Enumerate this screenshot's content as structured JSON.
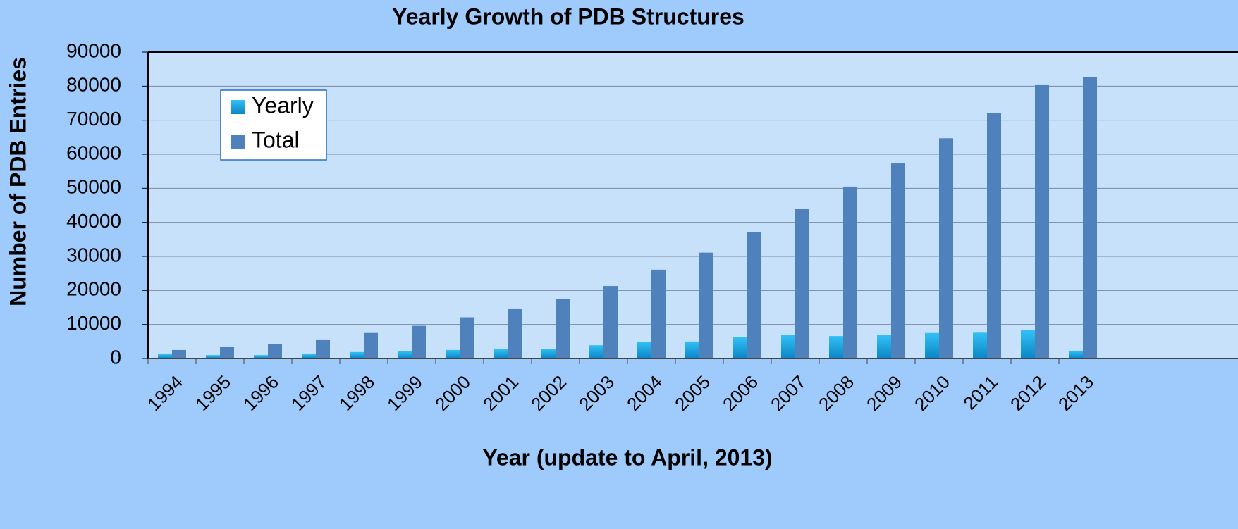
{
  "chart_data": {
    "type": "bar",
    "title": "Yearly Growth of PDB Structures",
    "xlabel": "Year (update to April, 2013)",
    "ylabel": "Number of PDB Entries",
    "categories": [
      "1994",
      "1995",
      "1996",
      "1997",
      "1998",
      "1999",
      "2000",
      "2001",
      "2002",
      "2003",
      "2004",
      "2005",
      "2006",
      "2007",
      "2008",
      "2009",
      "2010",
      "2011",
      "2012",
      "2013"
    ],
    "series": [
      {
        "name": "Yearly",
        "color": "#1aa3e0",
        "values": [
          1300,
          1000,
          1000,
          1300,
          1900,
          2100,
          2500,
          2700,
          2900,
          3900,
          4900,
          5000,
          6200,
          6900,
          6600,
          6900,
          7500,
          7600,
          8300,
          2300
        ]
      },
      {
        "name": "Total",
        "color": "#4f81bd",
        "values": [
          2500,
          3400,
          4300,
          5600,
          7500,
          9600,
          12100,
          14700,
          17500,
          21300,
          26100,
          31100,
          37200,
          44000,
          50500,
          57300,
          64700,
          72200,
          80500,
          82700
        ]
      }
    ],
    "ylim": [
      0,
      90000
    ],
    "yticks": [
      0,
      10000,
      20000,
      30000,
      40000,
      50000,
      60000,
      70000,
      80000,
      90000
    ],
    "grid": true,
    "legend": "top-left"
  }
}
